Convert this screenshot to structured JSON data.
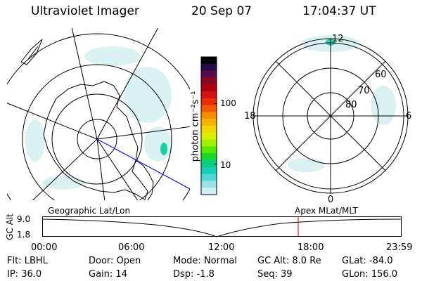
{
  "header": {
    "instrument": "Ultraviolet Imager",
    "date": "20 Sep 07",
    "time": "17:04:37 UT"
  },
  "colorbar": {
    "unit_label": "photon cm⁻²s⁻¹",
    "ticks": [
      "100",
      "10"
    ],
    "colors": [
      "#000000",
      "#2a0a4a",
      "#5a0a4a",
      "#8a0820",
      "#b00010",
      "#d21010",
      "#ec2c08",
      "#f65a00",
      "#f88c00",
      "#f8b400",
      "#f0d800",
      "#d8f000",
      "#a0f000",
      "#58e800",
      "#18d830",
      "#08d080",
      "#18d0b8",
      "#50d8d8",
      "#98e4e4",
      "#d0f0f0"
    ]
  },
  "geo_map": {
    "title": "Geographic Lat/Lon"
  },
  "apex_map": {
    "title": "Apex MLat/MLT",
    "mlt_labels": {
      "top": "12",
      "left": "18",
      "right": "6",
      "bottom": "0"
    },
    "lat_labels": [
      "60",
      "70",
      "80"
    ]
  },
  "altitude_plot": {
    "ylabel": "GC Alt",
    "yticks": [
      "9.0",
      "1.8"
    ],
    "xticks": [
      "00:00",
      "06:00",
      "12:00",
      "18:00",
      "23:59"
    ],
    "marker_time": "17:04"
  },
  "status": {
    "row1": [
      {
        "label": "Flt:",
        "value": "LBHL"
      },
      {
        "label": "Door:",
        "value": "Open"
      },
      {
        "label": "Mode:",
        "value": "Normal"
      },
      {
        "label": "GC Alt:",
        "value": "8.0 Re"
      },
      {
        "label": "GLat:",
        "value": "-84.0"
      }
    ],
    "row2": [
      {
        "label": "IP:",
        "value": "36.0"
      },
      {
        "label": "Gain:",
        "value": "14"
      },
      {
        "label": "Dsp:",
        "value": "-1.8"
      },
      {
        "label": "Seq:",
        "value": "39"
      },
      {
        "label": "GLon:",
        "value": "156.0"
      }
    ]
  }
}
